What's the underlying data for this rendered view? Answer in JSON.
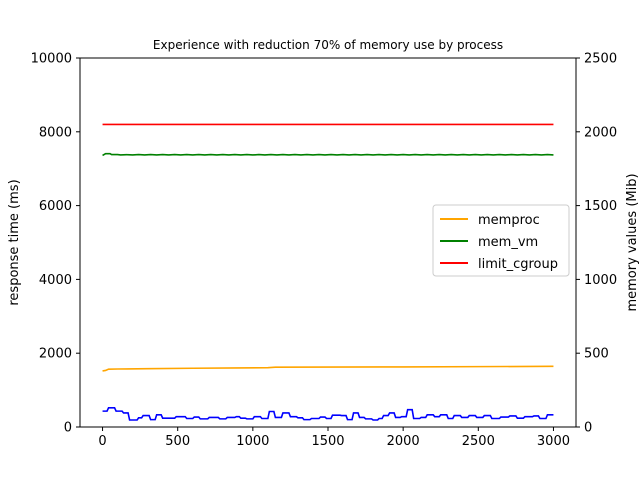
{
  "chart_data": {
    "type": "line",
    "title": "Experience with reduction 70% of memory use by process",
    "xlabel": "",
    "ylabel_left": "response time (ms)",
    "ylabel_right": "memory values (Mib)",
    "xlim": [
      -150,
      3150
    ],
    "ylim_left": [
      0,
      10000
    ],
    "ylim_right": [
      0,
      2500
    ],
    "x_ticks": [
      0,
      500,
      1000,
      1500,
      2000,
      2500,
      3000
    ],
    "y_ticks_left": [
      0,
      2000,
      4000,
      6000,
      8000,
      10000
    ],
    "y_ticks_right": [
      0,
      500,
      1000,
      1500,
      2000,
      2500
    ],
    "grid": false,
    "legend_position": "center-right",
    "series": [
      {
        "name": "memproc",
        "axis": "right",
        "color": "#ffa500",
        "points": [
          [
            0,
            380
          ],
          [
            20,
            383
          ],
          [
            40,
            392
          ],
          [
            100,
            393
          ],
          [
            300,
            395
          ],
          [
            600,
            398
          ],
          [
            900,
            400
          ],
          [
            1100,
            402
          ],
          [
            1150,
            405
          ],
          [
            1500,
            406
          ],
          [
            2000,
            407
          ],
          [
            2500,
            409
          ],
          [
            3000,
            411
          ]
        ]
      },
      {
        "name": "mem_vm",
        "axis": "right",
        "color": "#008000",
        "points": [
          [
            0,
            1840
          ],
          [
            20,
            1852
          ],
          [
            50,
            1852
          ],
          [
            60,
            1846
          ],
          [
            100,
            1846
          ],
          [
            120,
            1843
          ],
          [
            160,
            1845
          ],
          [
            200,
            1843
          ],
          [
            240,
            1846
          ],
          [
            280,
            1843
          ],
          [
            320,
            1846
          ],
          [
            360,
            1843
          ],
          [
            400,
            1846
          ],
          [
            440,
            1843
          ],
          [
            480,
            1846
          ],
          [
            520,
            1843
          ],
          [
            560,
            1846
          ],
          [
            600,
            1843
          ],
          [
            640,
            1846
          ],
          [
            680,
            1843
          ],
          [
            720,
            1846
          ],
          [
            760,
            1843
          ],
          [
            800,
            1846
          ],
          [
            840,
            1843
          ],
          [
            880,
            1846
          ],
          [
            920,
            1843
          ],
          [
            960,
            1846
          ],
          [
            1000,
            1843
          ],
          [
            1040,
            1846
          ],
          [
            1080,
            1843
          ],
          [
            1120,
            1846
          ],
          [
            1160,
            1843
          ],
          [
            1200,
            1846
          ],
          [
            1240,
            1843
          ],
          [
            1280,
            1846
          ],
          [
            1320,
            1843
          ],
          [
            1360,
            1846
          ],
          [
            1400,
            1843
          ],
          [
            1440,
            1846
          ],
          [
            1480,
            1843
          ],
          [
            1520,
            1846
          ],
          [
            1560,
            1843
          ],
          [
            1600,
            1846
          ],
          [
            1640,
            1843
          ],
          [
            1680,
            1846
          ],
          [
            1720,
            1843
          ],
          [
            1760,
            1846
          ],
          [
            1800,
            1843
          ],
          [
            1840,
            1846
          ],
          [
            1880,
            1843
          ],
          [
            1920,
            1846
          ],
          [
            1960,
            1843
          ],
          [
            2000,
            1846
          ],
          [
            2040,
            1843
          ],
          [
            2080,
            1846
          ],
          [
            2120,
            1843
          ],
          [
            2160,
            1846
          ],
          [
            2200,
            1843
          ],
          [
            2240,
            1846
          ],
          [
            2280,
            1843
          ],
          [
            2320,
            1846
          ],
          [
            2360,
            1843
          ],
          [
            2400,
            1846
          ],
          [
            2440,
            1843
          ],
          [
            2480,
            1846
          ],
          [
            2520,
            1843
          ],
          [
            2560,
            1846
          ],
          [
            2600,
            1843
          ],
          [
            2640,
            1846
          ],
          [
            2680,
            1843
          ],
          [
            2720,
            1846
          ],
          [
            2760,
            1843
          ],
          [
            2800,
            1846
          ],
          [
            2840,
            1843
          ],
          [
            2880,
            1846
          ],
          [
            2920,
            1843
          ],
          [
            2960,
            1846
          ],
          [
            3000,
            1843
          ]
        ]
      },
      {
        "name": "limit_cgroup",
        "axis": "right",
        "color": "#ff0000",
        "points": [
          [
            0,
            2050
          ],
          [
            3000,
            2050
          ]
        ]
      },
      {
        "name": "",
        "axis": "left",
        "color": "#0000ff",
        "step": true,
        "points": [
          [
            0,
            430
          ],
          [
            30,
            430
          ],
          [
            40,
            520
          ],
          [
            80,
            520
          ],
          [
            90,
            430
          ],
          [
            130,
            430
          ],
          [
            140,
            380
          ],
          [
            170,
            380
          ],
          [
            180,
            190
          ],
          [
            230,
            190
          ],
          [
            240,
            250
          ],
          [
            260,
            250
          ],
          [
            270,
            310
          ],
          [
            310,
            310
          ],
          [
            320,
            200
          ],
          [
            350,
            200
          ],
          [
            360,
            330
          ],
          [
            390,
            330
          ],
          [
            400,
            240
          ],
          [
            480,
            240
          ],
          [
            490,
            280
          ],
          [
            550,
            280
          ],
          [
            560,
            230
          ],
          [
            600,
            230
          ],
          [
            610,
            270
          ],
          [
            640,
            270
          ],
          [
            650,
            220
          ],
          [
            700,
            220
          ],
          [
            710,
            260
          ],
          [
            770,
            260
          ],
          [
            780,
            220
          ],
          [
            820,
            220
          ],
          [
            830,
            260
          ],
          [
            880,
            260
          ],
          [
            890,
            280
          ],
          [
            910,
            280
          ],
          [
            920,
            240
          ],
          [
            950,
            240
          ],
          [
            960,
            220
          ],
          [
            1000,
            220
          ],
          [
            1010,
            280
          ],
          [
            1050,
            280
          ],
          [
            1060,
            230
          ],
          [
            1100,
            230
          ],
          [
            1110,
            420
          ],
          [
            1140,
            420
          ],
          [
            1150,
            260
          ],
          [
            1190,
            260
          ],
          [
            1200,
            380
          ],
          [
            1240,
            380
          ],
          [
            1250,
            280
          ],
          [
            1290,
            280
          ],
          [
            1300,
            250
          ],
          [
            1330,
            250
          ],
          [
            1340,
            200
          ],
          [
            1380,
            200
          ],
          [
            1390,
            230
          ],
          [
            1440,
            230
          ],
          [
            1450,
            270
          ],
          [
            1480,
            270
          ],
          [
            1490,
            230
          ],
          [
            1520,
            230
          ],
          [
            1530,
            320
          ],
          [
            1580,
            320
          ],
          [
            1590,
            310
          ],
          [
            1620,
            310
          ],
          [
            1630,
            200
          ],
          [
            1660,
            200
          ],
          [
            1670,
            380
          ],
          [
            1700,
            380
          ],
          [
            1710,
            260
          ],
          [
            1740,
            260
          ],
          [
            1750,
            220
          ],
          [
            1790,
            220
          ],
          [
            1800,
            190
          ],
          [
            1830,
            190
          ],
          [
            1840,
            230
          ],
          [
            1860,
            230
          ],
          [
            1870,
            310
          ],
          [
            1900,
            310
          ],
          [
            1910,
            380
          ],
          [
            1940,
            380
          ],
          [
            1950,
            260
          ],
          [
            1980,
            260
          ],
          [
            1990,
            280
          ],
          [
            2020,
            280
          ],
          [
            2030,
            470
          ],
          [
            2060,
            470
          ],
          [
            2070,
            230
          ],
          [
            2110,
            230
          ],
          [
            2120,
            260
          ],
          [
            2150,
            260
          ],
          [
            2160,
            330
          ],
          [
            2200,
            330
          ],
          [
            2210,
            280
          ],
          [
            2240,
            280
          ],
          [
            2250,
            330
          ],
          [
            2290,
            330
          ],
          [
            2300,
            230
          ],
          [
            2330,
            230
          ],
          [
            2340,
            310
          ],
          [
            2380,
            310
          ],
          [
            2390,
            260
          ],
          [
            2430,
            260
          ],
          [
            2440,
            310
          ],
          [
            2480,
            310
          ],
          [
            2490,
            260
          ],
          [
            2530,
            260
          ],
          [
            2540,
            310
          ],
          [
            2580,
            310
          ],
          [
            2590,
            230
          ],
          [
            2640,
            230
          ],
          [
            2650,
            270
          ],
          [
            2700,
            270
          ],
          [
            2710,
            300
          ],
          [
            2750,
            300
          ],
          [
            2760,
            240
          ],
          [
            2800,
            240
          ],
          [
            2810,
            280
          ],
          [
            2860,
            280
          ],
          [
            2870,
            300
          ],
          [
            2900,
            300
          ],
          [
            2910,
            230
          ],
          [
            2950,
            230
          ],
          [
            2960,
            330
          ],
          [
            3000,
            330
          ]
        ]
      }
    ]
  }
}
